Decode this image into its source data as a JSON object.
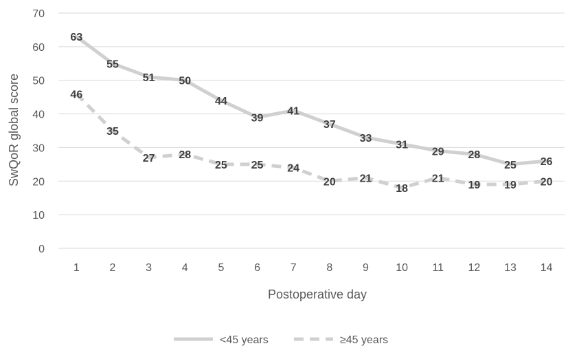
{
  "chart_data": {
    "type": "line",
    "title": "",
    "xlabel": "Postoperative day",
    "ylabel": "SwQoR global score",
    "x": [
      1,
      2,
      3,
      4,
      5,
      6,
      7,
      8,
      9,
      10,
      11,
      12,
      13,
      14
    ],
    "ylim": [
      0,
      70
    ],
    "yticks": [
      0,
      10,
      20,
      30,
      40,
      50,
      60,
      70
    ],
    "grid": true,
    "legend_position": "bottom",
    "series": [
      {
        "name": "<45 years",
        "values": [
          63,
          55,
          51,
          50,
          44,
          39,
          41,
          37,
          33,
          31,
          29,
          28,
          25,
          26
        ],
        "color": "#d0d0d0",
        "style": "solid"
      },
      {
        "name": "≥45 years",
        "values": [
          46,
          35,
          27,
          28,
          25,
          25,
          24,
          20,
          21,
          18,
          21,
          19,
          19,
          20
        ],
        "color": "#d0d0d0",
        "style": "dashed"
      }
    ]
  }
}
